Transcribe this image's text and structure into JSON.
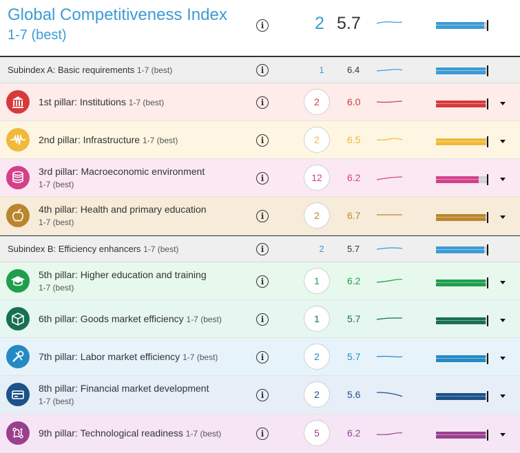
{
  "header": {
    "title": "Global Competitiveness Index",
    "scale": "1-7 (best)",
    "rank": "2",
    "score": "5.7",
    "color": "#3d9bd4",
    "bar_fraction": 0.95
  },
  "info_glyph": "i",
  "subindex_a": {
    "label": "Subindex A: Basic requirements",
    "scale": "1-7 (best)",
    "rank": "1",
    "score": "6.4",
    "bar_fraction": 0.97
  },
  "subindex_b": {
    "label": "Subindex B: Efficiency enhancers",
    "scale": "1-7 (best)",
    "rank": "2",
    "score": "5.7",
    "bar_fraction": 0.95
  },
  "pillars": [
    {
      "label": "1st pillar: Institutions",
      "scale": "1-7 (best)",
      "rank": "2",
      "score": "6.0",
      "color": "#d63b3b",
      "bg": "#fdece9",
      "icon": "institution-icon",
      "bar_fraction": 0.97
    },
    {
      "label": "2nd pillar: Infrastructure",
      "scale": "1-7 (best)",
      "rank": "2",
      "score": "6.5",
      "color": "#f0b93a",
      "bg": "#fef6e2",
      "icon": "infrastructure-icon",
      "bar_fraction": 0.97
    },
    {
      "label": "3rd pillar: Macroeconomic environment",
      "scale": "1-7 (best)",
      "rank": "12",
      "score": "6.2",
      "color": "#d2418a",
      "bg": "#fbe8f2",
      "icon": "coins-icon",
      "bar_fraction": 0.84
    },
    {
      "label": "4th pillar: Health and primary education",
      "scale": "1-7 (best)",
      "rank": "2",
      "score": "6.7",
      "color": "#b9862e",
      "bg": "#f7ecda",
      "icon": "apple-icon",
      "bar_fraction": 0.97
    },
    {
      "label": "5th pillar: Higher education and training",
      "scale": "1-7 (best)",
      "rank": "1",
      "score": "6.2",
      "color": "#1f9e4d",
      "bg": "#e7f8ec",
      "icon": "graduation-cap-icon",
      "bar_fraction": 0.97
    },
    {
      "label": "6th pillar: Goods market efficiency",
      "scale": "1-7 (best)",
      "rank": "1",
      "score": "5.7",
      "color": "#17704f",
      "bg": "#e6f6f0",
      "icon": "package-icon",
      "bar_fraction": 0.97
    },
    {
      "label": "7th pillar: Labor market efficiency",
      "scale": "1-7 (best)",
      "rank": "2",
      "score": "5.7",
      "color": "#2589c4",
      "bg": "#e7f3fb",
      "icon": "tools-icon",
      "bar_fraction": 0.97
    },
    {
      "label": "8th pillar: Financial market development",
      "scale": "1-7 (best)",
      "rank": "2",
      "score": "5.6",
      "color": "#1c5189",
      "bg": "#e6eef8",
      "icon": "credit-card-icon",
      "bar_fraction": 0.97
    },
    {
      "label": "9th pillar: Technological readiness",
      "scale": "1-7 (best)",
      "rank": "5",
      "score": "6.2",
      "color": "#9a3f8e",
      "bg": "#f6e6f5",
      "icon": "circuit-icon",
      "bar_fraction": 0.97
    }
  ]
}
